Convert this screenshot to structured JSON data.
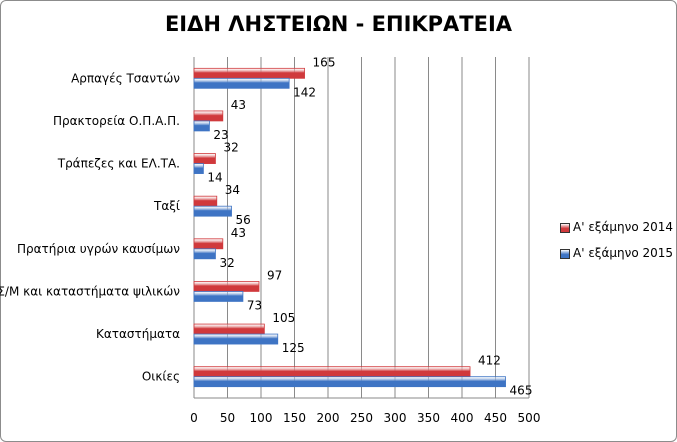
{
  "chart_data": {
    "type": "bar",
    "orientation": "horizontal",
    "title": "ΕΙΔΗ ΛΗΣΤΕΙΩΝ - ΕΠΙΚΡΑΤΕΙΑ",
    "categories": [
      "Αρπαγές Τσαντών",
      "Πρακτορεία Ο.Π.Α.Π.",
      "Τράπεζες και  ΕΛ.ΤΑ.",
      "Ταξί",
      "Πρατήρια υγρών καυσίμων",
      "Σ/Μ και καταστήματα  ψιλικών",
      "Καταστήματα",
      "Οικίες"
    ],
    "series": [
      {
        "name": "Α' εξάμηνο 2014",
        "color": "#d0393c",
        "values": [
          165,
          43,
          32,
          34,
          43,
          97,
          105,
          412
        ]
      },
      {
        "name": "Α' εξάμηνο 2015",
        "color": "#3e74c4",
        "values": [
          142,
          23,
          14,
          56,
          32,
          73,
          125,
          465
        ]
      }
    ],
    "xlim": [
      0,
      500
    ],
    "xticks": [
      0,
      50,
      100,
      150,
      200,
      250,
      300,
      350,
      400,
      450,
      500
    ],
    "grid": "vertical",
    "legend": "right"
  }
}
